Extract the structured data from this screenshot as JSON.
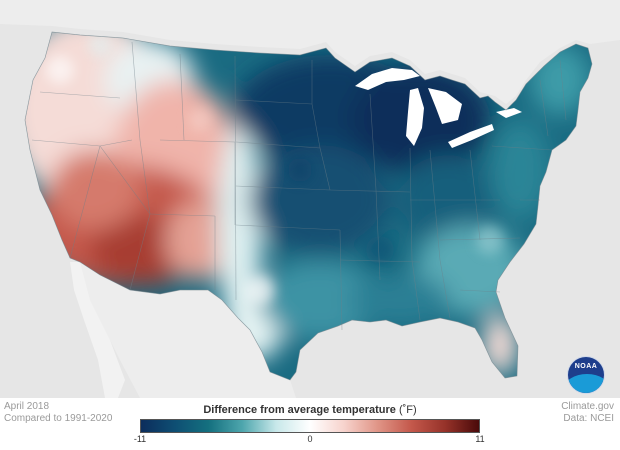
{
  "map": {
    "date": "April 2018",
    "baseline": "Compared to 1991-2020",
    "source_site": "Climate.gov",
    "source_data": "Data: NCEI",
    "logo_text": "NOAA"
  },
  "legend": {
    "title": "Difference from average temperature",
    "unit": "(˚F)",
    "ticks": [
      "-11",
      "0",
      "11"
    ],
    "min": -11,
    "max": 11,
    "colors": [
      "#0c2d5c",
      "#0e4e73",
      "#14707f",
      "#4ea6ad",
      "#c8e8ea",
      "#ffffff",
      "#f7d3cd",
      "#e09587",
      "#c4584b",
      "#963229",
      "#4a0a0a"
    ]
  },
  "regions": {
    "west_coast_color": "#f4d7d2",
    "southwest_color": "#c4584b",
    "rockies_color": "#f2b6ac",
    "plains_color": "#13607a",
    "midwest_color": "#0d3e66",
    "southeast_color": "#3c98a8",
    "florida_color": "#f6dcd6",
    "northeast_color": "#2b8a9a"
  }
}
